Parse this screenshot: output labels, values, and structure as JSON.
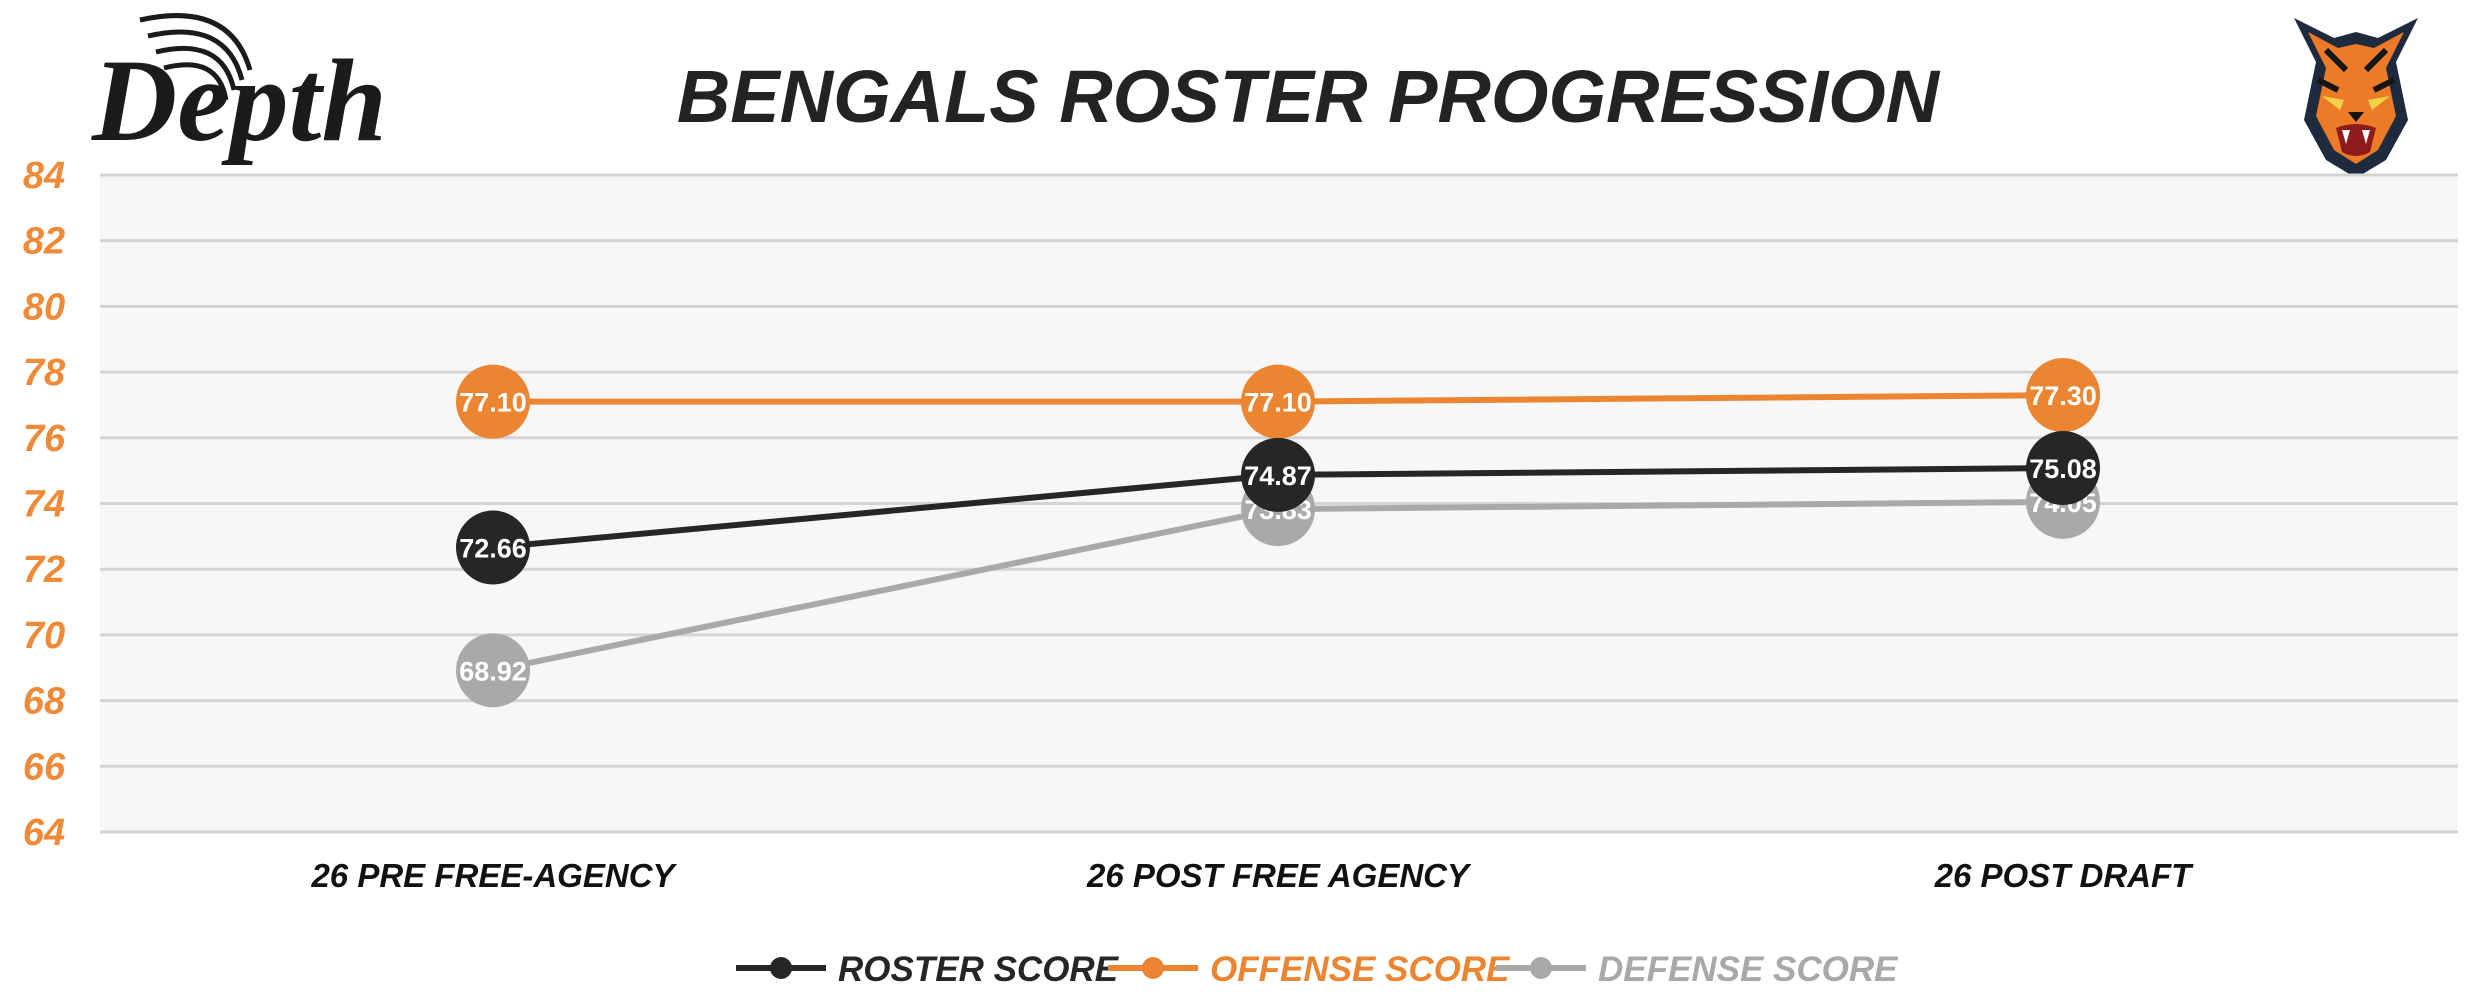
{
  "brand": {
    "logo_text": "Depth"
  },
  "colors": {
    "plot_bg": "#f7f7f7",
    "grid": "#d4d4d4",
    "tick": "#ee8a38",
    "title": "#232323",
    "roster": "#262626",
    "offense": "#ec8532",
    "defense": "#a9a9a9"
  },
  "icons": {
    "team_logo": "tiger-head-icon"
  },
  "chart_data": {
    "type": "line",
    "title": "BENGALS ROSTER PROGRESSION",
    "xlabel": "",
    "ylabel": "",
    "categories": [
      "26 PRE FREE-AGENCY",
      "26 POST FREE AGENCY",
      "26 POST DRAFT"
    ],
    "ylim": [
      64,
      84
    ],
    "yticks": [
      64,
      66,
      68,
      70,
      72,
      74,
      76,
      78,
      80,
      82,
      84
    ],
    "grid": true,
    "legend_position": "bottom",
    "series": [
      {
        "name": "ROSTER SCORE",
        "color": "#262626",
        "values": [
          72.66,
          74.87,
          75.08
        ],
        "labels": [
          "72.66",
          "74.87",
          "75.08"
        ]
      },
      {
        "name": "OFFENSE SCORE",
        "color": "#ec8532",
        "values": [
          77.1,
          77.1,
          77.3
        ],
        "labels": [
          "77.10",
          "77.10",
          "77.30"
        ]
      },
      {
        "name": "DEFENSE SCORE",
        "color": "#a9a9a9",
        "values": [
          68.92,
          73.83,
          74.05
        ],
        "labels": [
          "68.92",
          "73.83",
          "74.05"
        ]
      }
    ]
  }
}
